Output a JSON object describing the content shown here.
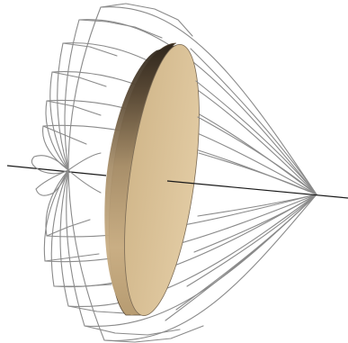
{
  "scene": {
    "description_free": true,
    "colors": {
      "background": "#ffffff",
      "wireframe": "#8a8a8a",
      "axis": "#1a1a1a",
      "disk_face": "#d9c096",
      "disk_rim_dark": "#3a2f22",
      "disk_rim_light": "#c4a980"
    },
    "objects": [
      {
        "name": "wireframe-surface",
        "kind": "mesh"
      },
      {
        "name": "lens-disk",
        "kind": "solid"
      },
      {
        "name": "optical-axis",
        "kind": "line"
      }
    ]
  }
}
